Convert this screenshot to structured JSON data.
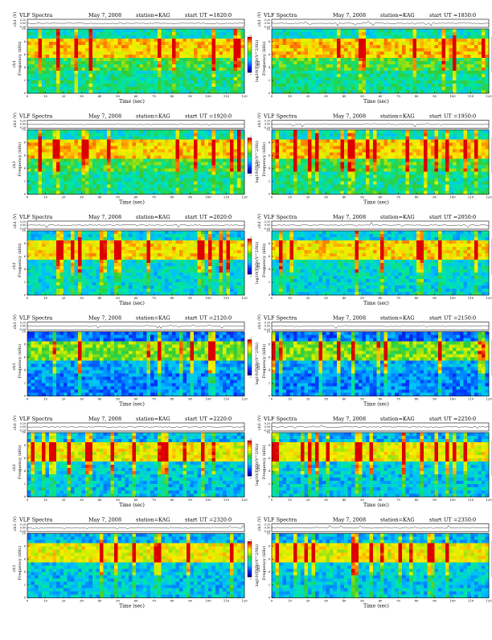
{
  "page": {
    "label_vlf": "VLF Spectra",
    "label_date": "May 7, 2008",
    "label_station": "station=KAG",
    "label_start": "start",
    "label_ut_prefix": "UT =",
    "ch_axis_label": "ch1 (V)",
    "ch_ticks": [
      "0.20",
      "0.00",
      "-0.20"
    ],
    "freq_axis_label": "Frequency (kHz)",
    "freq_axis_prefix": "ch1",
    "colorbar_label": "log10(PSD)(V^2/Hz)",
    "colorbar_ticks": [
      "-1",
      "-7"
    ]
  },
  "chart_data": [
    {
      "type": "heatmap",
      "start_time": "1820:0",
      "xlabel": "Time (sec)",
      "ylabel": "Frequency (kHz)",
      "xlim": [
        0,
        120
      ],
      "ylim": [
        0,
        10
      ],
      "x_ticks": [
        0,
        10,
        20,
        30,
        40,
        50,
        60,
        70,
        80,
        90,
        100,
        110,
        120
      ],
      "y_ticks": [
        0,
        2,
        4,
        6,
        8,
        10
      ],
      "profile": "busy"
    },
    {
      "type": "heatmap",
      "start_time": "1850:0",
      "xlabel": "Time (sec)",
      "ylabel": "Frequency (kHz)",
      "xlim": [
        0,
        120
      ],
      "ylim": [
        0,
        10
      ],
      "x_ticks": [
        0,
        10,
        20,
        30,
        40,
        50,
        60,
        70,
        80,
        90,
        100,
        110,
        120
      ],
      "y_ticks": [
        0,
        2,
        4,
        6,
        8,
        10
      ],
      "profile": "busy"
    },
    {
      "type": "heatmap",
      "start_time": "1920:0",
      "xlabel": "Time (sec)",
      "ylabel": "Frequency (kHz)",
      "xlim": [
        0,
        120
      ],
      "ylim": [
        0,
        10
      ],
      "x_ticks": [
        0,
        10,
        20,
        30,
        40,
        50,
        60,
        70,
        80,
        90,
        100,
        110,
        120
      ],
      "y_ticks": [
        0,
        2,
        4,
        6,
        8,
        10
      ],
      "profile": "busy"
    },
    {
      "type": "heatmap",
      "start_time": "1950:0",
      "xlabel": "Time (sec)",
      "ylabel": "Frequency (kHz)",
      "xlim": [
        0,
        120
      ],
      "ylim": [
        0,
        10
      ],
      "x_ticks": [
        0,
        10,
        20,
        30,
        40,
        50,
        60,
        70,
        80,
        90,
        100,
        110,
        120
      ],
      "y_ticks": [
        0,
        2,
        4,
        6,
        8,
        10
      ],
      "profile": "busy"
    },
    {
      "type": "heatmap",
      "start_time": "2020:0",
      "xlabel": "Time (sec)",
      "ylabel": "Frequency (kHz)",
      "xlim": [
        0,
        120
      ],
      "ylim": [
        0,
        10
      ],
      "x_ticks": [
        0,
        10,
        20,
        30,
        40,
        50,
        60,
        70,
        80,
        90,
        100,
        110,
        120
      ],
      "y_ticks": [
        0,
        2,
        4,
        6,
        8,
        10
      ],
      "profile": "mid"
    },
    {
      "type": "heatmap",
      "start_time": "2050:0",
      "xlabel": "Time (sec)",
      "ylabel": "Frequency (kHz)",
      "xlim": [
        0,
        120
      ],
      "ylim": [
        0,
        10
      ],
      "x_ticks": [
        0,
        10,
        20,
        30,
        40,
        50,
        60,
        70,
        80,
        90,
        100,
        110,
        120
      ],
      "y_ticks": [
        0,
        2,
        4,
        6,
        8,
        10
      ],
      "profile": "mid"
    },
    {
      "type": "heatmap",
      "start_time": "2120:0",
      "xlabel": "Time (sec)",
      "ylabel": "Frequency (kHz)",
      "xlim": [
        0,
        120
      ],
      "ylim": [
        0,
        10
      ],
      "x_ticks": [
        0,
        10,
        20,
        30,
        40,
        50,
        60,
        70,
        80,
        90,
        100,
        110,
        120
      ],
      "y_ticks": [
        0,
        2,
        4,
        6,
        8,
        10
      ],
      "profile": "noisy"
    },
    {
      "type": "heatmap",
      "start_time": "2150:0",
      "xlabel": "Time (sec)",
      "ylabel": "Frequency (kHz)",
      "xlim": [
        0,
        120
      ],
      "ylim": [
        0,
        10
      ],
      "x_ticks": [
        0,
        10,
        20,
        30,
        40,
        50,
        60,
        70,
        80,
        90,
        100,
        110,
        120
      ],
      "y_ticks": [
        0,
        2,
        4,
        6,
        8,
        10
      ],
      "profile": "noisy"
    },
    {
      "type": "heatmap",
      "start_time": "2220:0",
      "xlabel": "Time (sec)",
      "ylabel": "Frequency (kHz)",
      "xlim": [
        0,
        120
      ],
      "ylim": [
        0,
        10
      ],
      "x_ticks": [
        0,
        10,
        20,
        30,
        40,
        50,
        60,
        70,
        80,
        90,
        100,
        110,
        120
      ],
      "y_ticks": [
        0,
        2,
        4,
        6,
        8,
        10
      ],
      "profile": "quiet"
    },
    {
      "type": "heatmap",
      "start_time": "2250:0",
      "xlabel": "Time (sec)",
      "ylabel": "Frequency (kHz)",
      "xlim": [
        0,
        120
      ],
      "ylim": [
        0,
        10
      ],
      "x_ticks": [
        0,
        10,
        20,
        30,
        40,
        50,
        60,
        70,
        80,
        90,
        100,
        110,
        120
      ],
      "y_ticks": [
        0,
        2,
        4,
        6,
        8,
        10
      ],
      "profile": "quiet"
    },
    {
      "type": "heatmap",
      "start_time": "2320:0",
      "xlabel": "Time (sec)",
      "ylabel": "Frequency (kHz)",
      "xlim": [
        0,
        120
      ],
      "ylim": [
        0,
        10
      ],
      "x_ticks": [
        0,
        10,
        20,
        30,
        40,
        50,
        60,
        70,
        80,
        90,
        100,
        110,
        120
      ],
      "y_ticks": [
        0,
        2,
        4,
        6,
        8,
        10
      ],
      "profile": "quiet"
    },
    {
      "type": "heatmap",
      "start_time": "2350:0",
      "xlabel": "Time (sec)",
      "ylabel": "Frequency (kHz)",
      "xlim": [
        0,
        120
      ],
      "ylim": [
        0,
        10
      ],
      "x_ticks": [
        0,
        10,
        20,
        30,
        40,
        50,
        60,
        70,
        80,
        90,
        100,
        110,
        120
      ],
      "y_ticks": [
        0,
        2,
        4,
        6,
        8,
        10
      ],
      "profile": "quiet"
    }
  ]
}
